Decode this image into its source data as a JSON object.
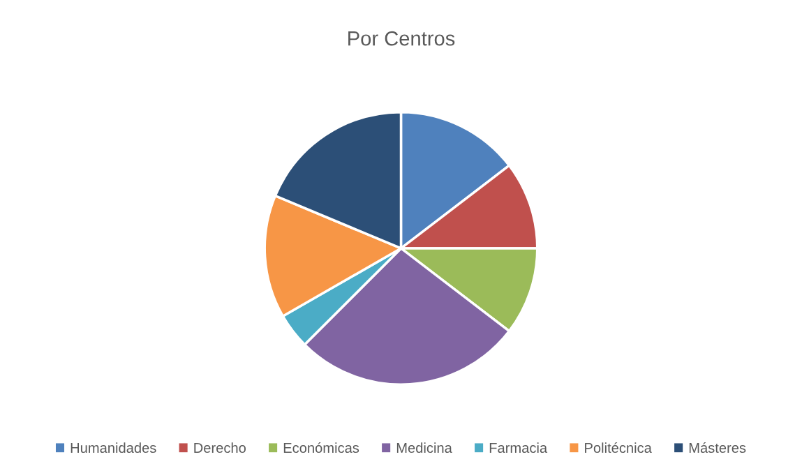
{
  "chart_data": {
    "type": "pie",
    "title": "Por Centros",
    "categories": [
      "Humanidades",
      "Derecho",
      "Económicas",
      "Medicina",
      "Farmacia",
      "Politécnica",
      "Másteres"
    ],
    "values": [
      14.6,
      10.4,
      10.4,
      27.1,
      4.2,
      14.6,
      18.7
    ],
    "colors": [
      "#4f81bd",
      "#c0504d",
      "#9bbb59",
      "#8064a2",
      "#4bacc6",
      "#f79646",
      "#2c4f77"
    ],
    "legend": "bottom"
  }
}
